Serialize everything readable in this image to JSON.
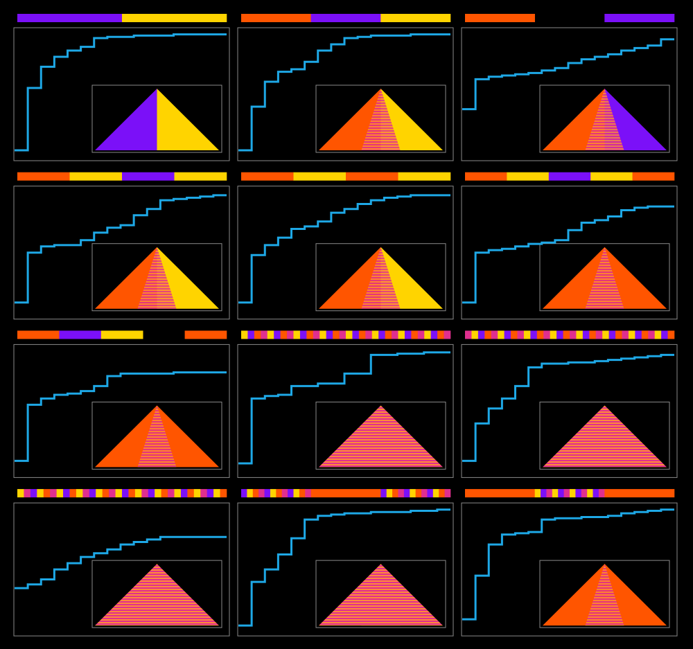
{
  "panels": [
    {
      "bar": [
        "#7b10f8",
        "#ffd400"
      ],
      "curve": [
        0.05,
        0.55,
        0.72,
        0.8,
        0.85,
        0.88,
        0.95,
        0.96,
        0.96,
        0.97,
        0.97,
        0.97,
        0.98,
        0.98,
        0.98,
        0.98
      ]
    },
    {
      "bar": [
        "#ff5500",
        "#7b10f8",
        "#ffd400"
      ],
      "curve": [
        0.05,
        0.4,
        0.6,
        0.68,
        0.7,
        0.76,
        0.85,
        0.9,
        0.95,
        0.96,
        0.97,
        0.97,
        0.97,
        0.98,
        0.98,
        0.98
      ]
    },
    {
      "bar": [
        "#ff5500",
        null,
        "#7b10f8"
      ],
      "curve": [
        0.38,
        0.62,
        0.64,
        0.65,
        0.66,
        0.67,
        0.69,
        0.71,
        0.75,
        0.78,
        0.8,
        0.82,
        0.85,
        0.87,
        0.89,
        0.94
      ]
    },
    {
      "bar": [
        "#ff5500",
        "#ffd400",
        "#7b10f8",
        "#ffd400"
      ],
      "curve": [
        0.1,
        0.5,
        0.55,
        0.56,
        0.56,
        0.6,
        0.66,
        0.7,
        0.72,
        0.8,
        0.85,
        0.92,
        0.93,
        0.94,
        0.95,
        0.96
      ]
    },
    {
      "bar": [
        "#ff5500",
        "#ffd400",
        "#ff5500",
        "#ffd400"
      ],
      "curve": [
        0.1,
        0.48,
        0.56,
        0.62,
        0.69,
        0.71,
        0.75,
        0.82,
        0.85,
        0.89,
        0.92,
        0.94,
        0.95,
        0.96,
        0.96,
        0.96
      ]
    },
    {
      "bar": [
        "#ff5500",
        "#ffd400",
        "#7b10f8",
        "#ffd400",
        "#ff5500"
      ],
      "curve": [
        0.1,
        0.5,
        0.52,
        0.53,
        0.55,
        0.57,
        0.58,
        0.6,
        0.68,
        0.74,
        0.76,
        0.79,
        0.84,
        0.86,
        0.87,
        0.87
      ]
    },
    {
      "bar": [
        "#ff5500",
        "#7b10f8",
        "#ffd400",
        null,
        "#ff5500"
      ],
      "curve": [
        0.1,
        0.55,
        0.6,
        0.63,
        0.64,
        0.66,
        0.7,
        0.78,
        0.8,
        0.8,
        0.8,
        0.8,
        0.81,
        0.81,
        0.81,
        0.81
      ]
    },
    {
      "bar": [
        [
          "#ffd400",
          "#7b10f8",
          "#ff5500",
          "#e02f8f",
          "#ffd400",
          "#7b10f8",
          "#ff5500",
          "#e02f8f",
          "#ffd400",
          "#7b10f8",
          "#ff5500",
          "#e02f8f",
          "#ffd400",
          "#7b10f8",
          "#ff5500",
          "#e02f8f",
          "#ffd400",
          "#7b10f8",
          "#ff5500",
          "#e02f8f",
          "#ffd400",
          "#7b10f8",
          "#ff5500",
          "#e02f8f",
          "#ffd400",
          "#7b10f8",
          "#ff5500",
          "#e02f8f",
          "#ffd400",
          "#7b10f8",
          "#ff5500",
          "#e02f8f"
        ]
      ],
      "curve": [
        0.08,
        0.6,
        0.62,
        0.63,
        0.7,
        0.7,
        0.72,
        0.72,
        0.8,
        0.8,
        0.95,
        0.95,
        0.96,
        0.96,
        0.97,
        0.97
      ]
    },
    {
      "bar": [
        [
          "#e02f8f",
          "#ffd400",
          "#7b10f8",
          "#ff5500",
          "#e02f8f",
          "#ffd400",
          "#7b10f8",
          "#ff5500",
          "#e02f8f",
          "#ffd400",
          "#7b10f8",
          "#ff5500",
          "#e02f8f",
          "#ffd400",
          "#7b10f8",
          "#ff5500",
          "#e02f8f",
          "#ffd400",
          "#7b10f8",
          "#ff5500",
          "#e02f8f",
          "#ffd400",
          "#7b10f8",
          "#ff5500",
          "#e02f8f",
          "#ffd400",
          "#7b10f8",
          "#ff5500",
          "#e02f8f",
          "#ffd400",
          "#7b10f8",
          "#ff5500"
        ]
      ],
      "curve": [
        0.1,
        0.4,
        0.52,
        0.6,
        0.7,
        0.85,
        0.88,
        0.88,
        0.89,
        0.89,
        0.9,
        0.91,
        0.92,
        0.93,
        0.94,
        0.95
      ]
    },
    {
      "bar": [
        [
          "#ffd400",
          "#e02f8f",
          "#7b10f8",
          "#ffd400",
          "#ff5500",
          "#e02f8f",
          "#ffd400",
          "#7b10f8",
          "#ff5500",
          "#ffd400",
          "#e02f8f",
          "#7b10f8",
          "#ffd400",
          "#ff5500",
          "#e02f8f",
          "#ffd400",
          "#7b10f8",
          "#ff5500",
          "#ffd400",
          "#e02f8f",
          "#7b10f8",
          "#ffd400",
          "#ff5500",
          "#e02f8f",
          "#ffd400",
          "#7b10f8",
          "#ff5500",
          "#ffd400",
          "#e02f8f",
          "#7b10f8",
          "#ffd400",
          "#ff5500"
        ]
      ],
      "curve": [
        0.35,
        0.38,
        0.42,
        0.5,
        0.55,
        0.6,
        0.63,
        0.66,
        0.7,
        0.72,
        0.74,
        0.76,
        0.76,
        0.76,
        0.76,
        0.76
      ]
    },
    {
      "bar": [
        [
          "#7b10f8",
          "#ffd400",
          "#ff5500",
          "#e02f8f",
          "#7b10f8",
          "#ffd400",
          "#ff5500",
          "#e02f8f",
          "#7b10f8",
          "#ffd400",
          "#ff5500",
          "#e02f8f"
        ],
        "#ff5500",
        [
          "#7b10f8",
          "#ffd400",
          "#ff5500",
          "#e02f8f",
          "#7b10f8",
          "#ffd400",
          "#ff5500",
          "#e02f8f",
          "#7b10f8",
          "#ffd400",
          "#ff5500",
          "#e02f8f"
        ]
      ],
      "curve": [
        0.05,
        0.4,
        0.5,
        0.62,
        0.75,
        0.9,
        0.93,
        0.94,
        0.95,
        0.95,
        0.96,
        0.96,
        0.96,
        0.97,
        0.97,
        0.98
      ]
    },
    {
      "bar": [
        "#ff5500",
        [
          "#ffd400",
          "#7b10f8",
          "#e02f8f",
          "#ffd400",
          "#7b10f8",
          "#e02f8f",
          "#ffd400",
          "#7b10f8",
          "#e02f8f",
          "#ffd400",
          "#7b10f8",
          "#e02f8f"
        ],
        "#ff5500"
      ],
      "curve": [
        0.1,
        0.45,
        0.7,
        0.78,
        0.79,
        0.8,
        0.9,
        0.91,
        0.91,
        0.92,
        0.92,
        0.93,
        0.95,
        0.96,
        0.97,
        0.98
      ]
    }
  ]
}
